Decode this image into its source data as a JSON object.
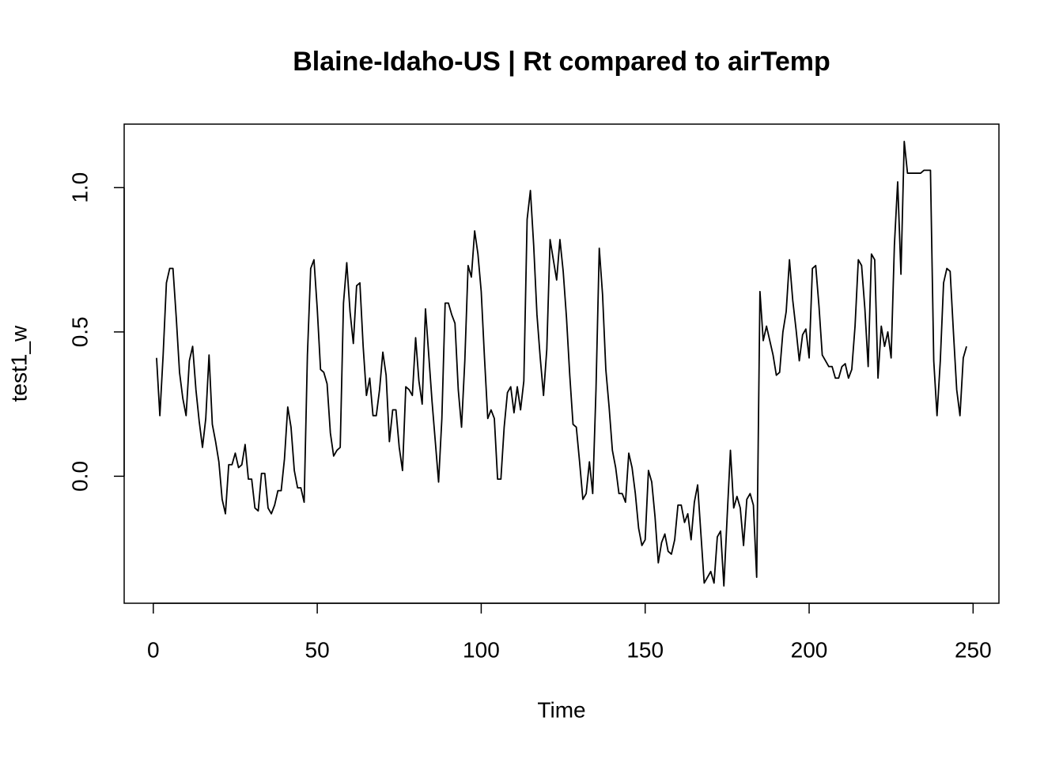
{
  "chart_data": {
    "type": "line",
    "title": "Blaine-Idaho-US | Rt compared to airTemp",
    "xlabel": "Time",
    "ylabel": "test1_w",
    "xlim": [
      -8.88,
      257.88
    ],
    "ylim": [
      -0.44,
      1.22
    ],
    "xticks": [
      0,
      50,
      100,
      150,
      200,
      250
    ],
    "yticks": [
      {
        "value": 0,
        "label": "0.0"
      },
      0.5,
      {
        "value": 1,
        "label": "1.0"
      }
    ],
    "grid": false,
    "x": [
      1,
      2,
      3,
      4,
      5,
      6,
      7,
      8,
      9,
      10,
      11,
      12,
      13,
      14,
      15,
      16,
      17,
      18,
      19,
      20,
      21,
      22,
      23,
      24,
      25,
      26,
      27,
      28,
      29,
      30,
      31,
      32,
      33,
      34,
      35,
      36,
      37,
      38,
      39,
      40,
      41,
      42,
      43,
      44,
      45,
      46,
      47,
      48,
      49,
      50,
      51,
      52,
      53,
      54,
      55,
      56,
      57,
      58,
      59,
      60,
      61,
      62,
      63,
      64,
      65,
      66,
      67,
      68,
      69,
      70,
      71,
      72,
      73,
      74,
      75,
      76,
      77,
      78,
      79,
      80,
      81,
      82,
      83,
      84,
      85,
      86,
      87,
      88,
      89,
      90,
      91,
      92,
      93,
      94,
      95,
      96,
      97,
      98,
      99,
      100,
      101,
      102,
      103,
      104,
      105,
      106,
      107,
      108,
      109,
      110,
      111,
      112,
      113,
      114,
      115,
      116,
      117,
      118,
      119,
      120,
      121,
      122,
      123,
      124,
      125,
      126,
      127,
      128,
      129,
      130,
      131,
      132,
      133,
      134,
      135,
      136,
      137,
      138,
      139,
      140,
      141,
      142,
      143,
      144,
      145,
      146,
      147,
      148,
      149,
      150,
      151,
      152,
      153,
      154,
      155,
      156,
      157,
      158,
      159,
      160,
      161,
      162,
      163,
      164,
      165,
      166,
      167,
      168,
      169,
      170,
      171,
      172,
      173,
      174,
      175,
      176,
      177,
      178,
      179,
      180,
      181,
      182,
      183,
      184,
      185,
      186,
      187,
      188,
      189,
      190,
      191,
      192,
      193,
      194,
      195,
      196,
      197,
      198,
      199,
      200,
      201,
      202,
      203,
      204,
      205,
      206,
      207,
      208,
      209,
      210,
      211,
      212,
      213,
      214,
      215,
      216,
      217,
      218,
      219,
      220,
      221,
      222,
      223,
      224,
      225,
      226,
      227,
      228,
      229,
      230,
      231,
      232,
      233,
      234,
      235,
      236,
      237,
      238,
      239,
      240,
      241,
      242,
      243,
      244,
      245,
      246,
      247,
      248
    ],
    "series": [
      {
        "name": "test1_w",
        "color": "#000000",
        "values": [
          0.41,
          0.21,
          0.42,
          0.67,
          0.72,
          0.72,
          0.55,
          0.36,
          0.27,
          0.21,
          0.4,
          0.45,
          0.3,
          0.19,
          0.1,
          0.2,
          0.42,
          0.18,
          0.12,
          0.05,
          -0.08,
          -0.13,
          0.04,
          0.04,
          0.08,
          0.03,
          0.04,
          0.11,
          -0.01,
          -0.01,
          -0.11,
          -0.12,
          0.01,
          0.01,
          -0.11,
          -0.13,
          -0.1,
          -0.05,
          -0.05,
          0.06,
          0.24,
          0.17,
          0.02,
          -0.04,
          -0.04,
          -0.09,
          0.42,
          0.72,
          0.75,
          0.58,
          0.37,
          0.36,
          0.32,
          0.15,
          0.07,
          0.09,
          0.1,
          0.6,
          0.74,
          0.57,
          0.46,
          0.66,
          0.67,
          0.45,
          0.28,
          0.34,
          0.21,
          0.21,
          0.3,
          0.43,
          0.35,
          0.12,
          0.23,
          0.23,
          0.1,
          0.02,
          0.31,
          0.3,
          0.28,
          0.48,
          0.33,
          0.25,
          0.58,
          0.42,
          0.26,
          0.12,
          -0.02,
          0.2,
          0.6,
          0.6,
          0.56,
          0.53,
          0.3,
          0.17,
          0.4,
          0.73,
          0.69,
          0.85,
          0.77,
          0.64,
          0.41,
          0.2,
          0.23,
          0.2,
          -0.01,
          -0.01,
          0.17,
          0.29,
          0.31,
          0.22,
          0.31,
          0.23,
          0.33,
          0.89,
          0.99,
          0.8,
          0.56,
          0.41,
          0.28,
          0.44,
          0.82,
          0.75,
          0.68,
          0.82,
          0.71,
          0.55,
          0.35,
          0.18,
          0.17,
          0.05,
          -0.08,
          -0.06,
          0.05,
          -0.06,
          0.3,
          0.79,
          0.63,
          0.37,
          0.24,
          0.09,
          0.03,
          -0.06,
          -0.06,
          -0.09,
          0.08,
          0.03,
          -0.06,
          -0.18,
          -0.24,
          -0.22,
          0.02,
          -0.02,
          -0.14,
          -0.3,
          -0.23,
          -0.2,
          -0.26,
          -0.27,
          -0.22,
          -0.1,
          -0.1,
          -0.16,
          -0.13,
          -0.22,
          -0.09,
          -0.03,
          -0.2,
          -0.37,
          -0.35,
          -0.33,
          -0.37,
          -0.21,
          -0.19,
          -0.38,
          -0.14,
          0.09,
          -0.11,
          -0.07,
          -0.11,
          -0.24,
          -0.08,
          -0.06,
          -0.1,
          -0.35,
          0.64,
          0.47,
          0.52,
          0.47,
          0.42,
          0.35,
          0.36,
          0.5,
          0.57,
          0.75,
          0.61,
          0.51,
          0.4,
          0.49,
          0.51,
          0.41,
          0.72,
          0.73,
          0.59,
          0.42,
          0.4,
          0.38,
          0.38,
          0.34,
          0.34,
          0.38,
          0.39,
          0.34,
          0.37,
          0.52,
          0.75,
          0.73,
          0.58,
          0.38,
          0.77,
          0.75,
          0.34,
          0.52,
          0.45,
          0.5,
          0.41,
          0.8,
          1.02,
          0.7,
          1.16,
          1.05,
          1.05,
          1.05,
          1.05,
          1.05,
          1.06,
          1.06,
          1.06,
          0.4,
          0.21,
          0.4,
          0.67,
          0.72,
          0.71,
          0.5,
          0.3,
          0.21,
          0.41,
          0.45
        ]
      }
    ]
  }
}
